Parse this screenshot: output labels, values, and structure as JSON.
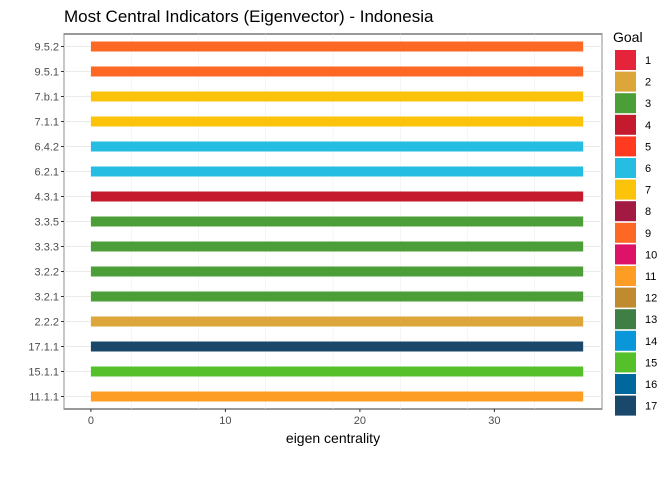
{
  "chart_data": {
    "type": "bar",
    "orientation": "horizontal",
    "title": "Most Central Indicators (Eigenvector) - Indonesia",
    "xlabel": "eigen centrality",
    "ylabel": "",
    "xlim": [
      -2,
      38
    ],
    "xticks": [
      0,
      10,
      20,
      30
    ],
    "grid": true,
    "categories": [
      "9.5.2",
      "9.5.1",
      "7.b.1",
      "7.1.1",
      "6.4.2",
      "6.2.1",
      "4.3.1",
      "3.3.5",
      "3.3.3",
      "3.2.2",
      "3.2.1",
      "2.2.2",
      "17.1.1",
      "15.1.1",
      "11.1.1"
    ],
    "values": [
      36.6,
      36.6,
      36.6,
      36.6,
      36.6,
      36.6,
      36.6,
      36.6,
      36.6,
      36.6,
      36.6,
      36.6,
      36.6,
      36.6,
      36.6
    ],
    "goals": [
      "9",
      "9",
      "7",
      "7",
      "6",
      "6",
      "4",
      "3",
      "3",
      "3",
      "3",
      "2",
      "17",
      "15",
      "11"
    ],
    "legend": {
      "title": "Goal",
      "placement": "right",
      "items": [
        {
          "label": "1",
          "color": "#e5243b"
        },
        {
          "label": "2",
          "color": "#dda63a"
        },
        {
          "label": "3",
          "color": "#4c9f38"
        },
        {
          "label": "4",
          "color": "#c5192d"
        },
        {
          "label": "5",
          "color": "#ff3a21"
        },
        {
          "label": "6",
          "color": "#26bde2"
        },
        {
          "label": "7",
          "color": "#fcc30b"
        },
        {
          "label": "8",
          "color": "#a21942"
        },
        {
          "label": "9",
          "color": "#fd6925"
        },
        {
          "label": "10",
          "color": "#dd1367"
        },
        {
          "label": "11",
          "color": "#fd9d24"
        },
        {
          "label": "12",
          "color": "#bf8b2e"
        },
        {
          "label": "13",
          "color": "#3f7e44"
        },
        {
          "label": "14",
          "color": "#0a97d9"
        },
        {
          "label": "15",
          "color": "#56c02b"
        },
        {
          "label": "16",
          "color": "#00689d"
        },
        {
          "label": "17",
          "color": "#19486a"
        }
      ]
    }
  }
}
